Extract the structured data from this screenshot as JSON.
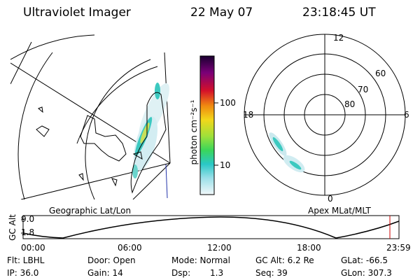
{
  "header": {
    "instrument": "Ultraviolet Imager",
    "date": "22 May 07",
    "time": "23:18:45 UT"
  },
  "colorbar": {
    "unit_label": "photon cm⁻²s⁻¹",
    "ticks": [
      "100",
      "10"
    ]
  },
  "maps": {
    "left_label": "Geographic Lat/Lon",
    "right_label": "Apex MLat/MLT",
    "polar_clock": [
      "12",
      "18",
      "6",
      "0"
    ],
    "polar_lat": [
      "60",
      "70",
      "80"
    ]
  },
  "altitude_plot": {
    "ylabel": "GC Alt",
    "yticks": [
      "9.0",
      "1.8"
    ],
    "xticks": [
      "00:00",
      "06:00",
      "12:00",
      "18:00",
      "23:59"
    ]
  },
  "info": {
    "flt": "Flt: LBHL",
    "ip": "IP: 36.0",
    "door": "Door: Open",
    "gain": "Gain: 14",
    "mode": "Mode: Normal",
    "dsp_label": "Dsp:",
    "dsp_value": "1.3",
    "gcalt": "GC Alt: 6.2 Re",
    "seq": "Seq: 39",
    "glat": "GLat: -66.5",
    "glon": "GLon: 307.3"
  },
  "colors": {
    "frame": "#000000",
    "marker": "#cc0000",
    "aurora_low": "#bfe8ee",
    "aurora_mid": "#3cc9c0",
    "aurora_high": "#c8e05a"
  }
}
